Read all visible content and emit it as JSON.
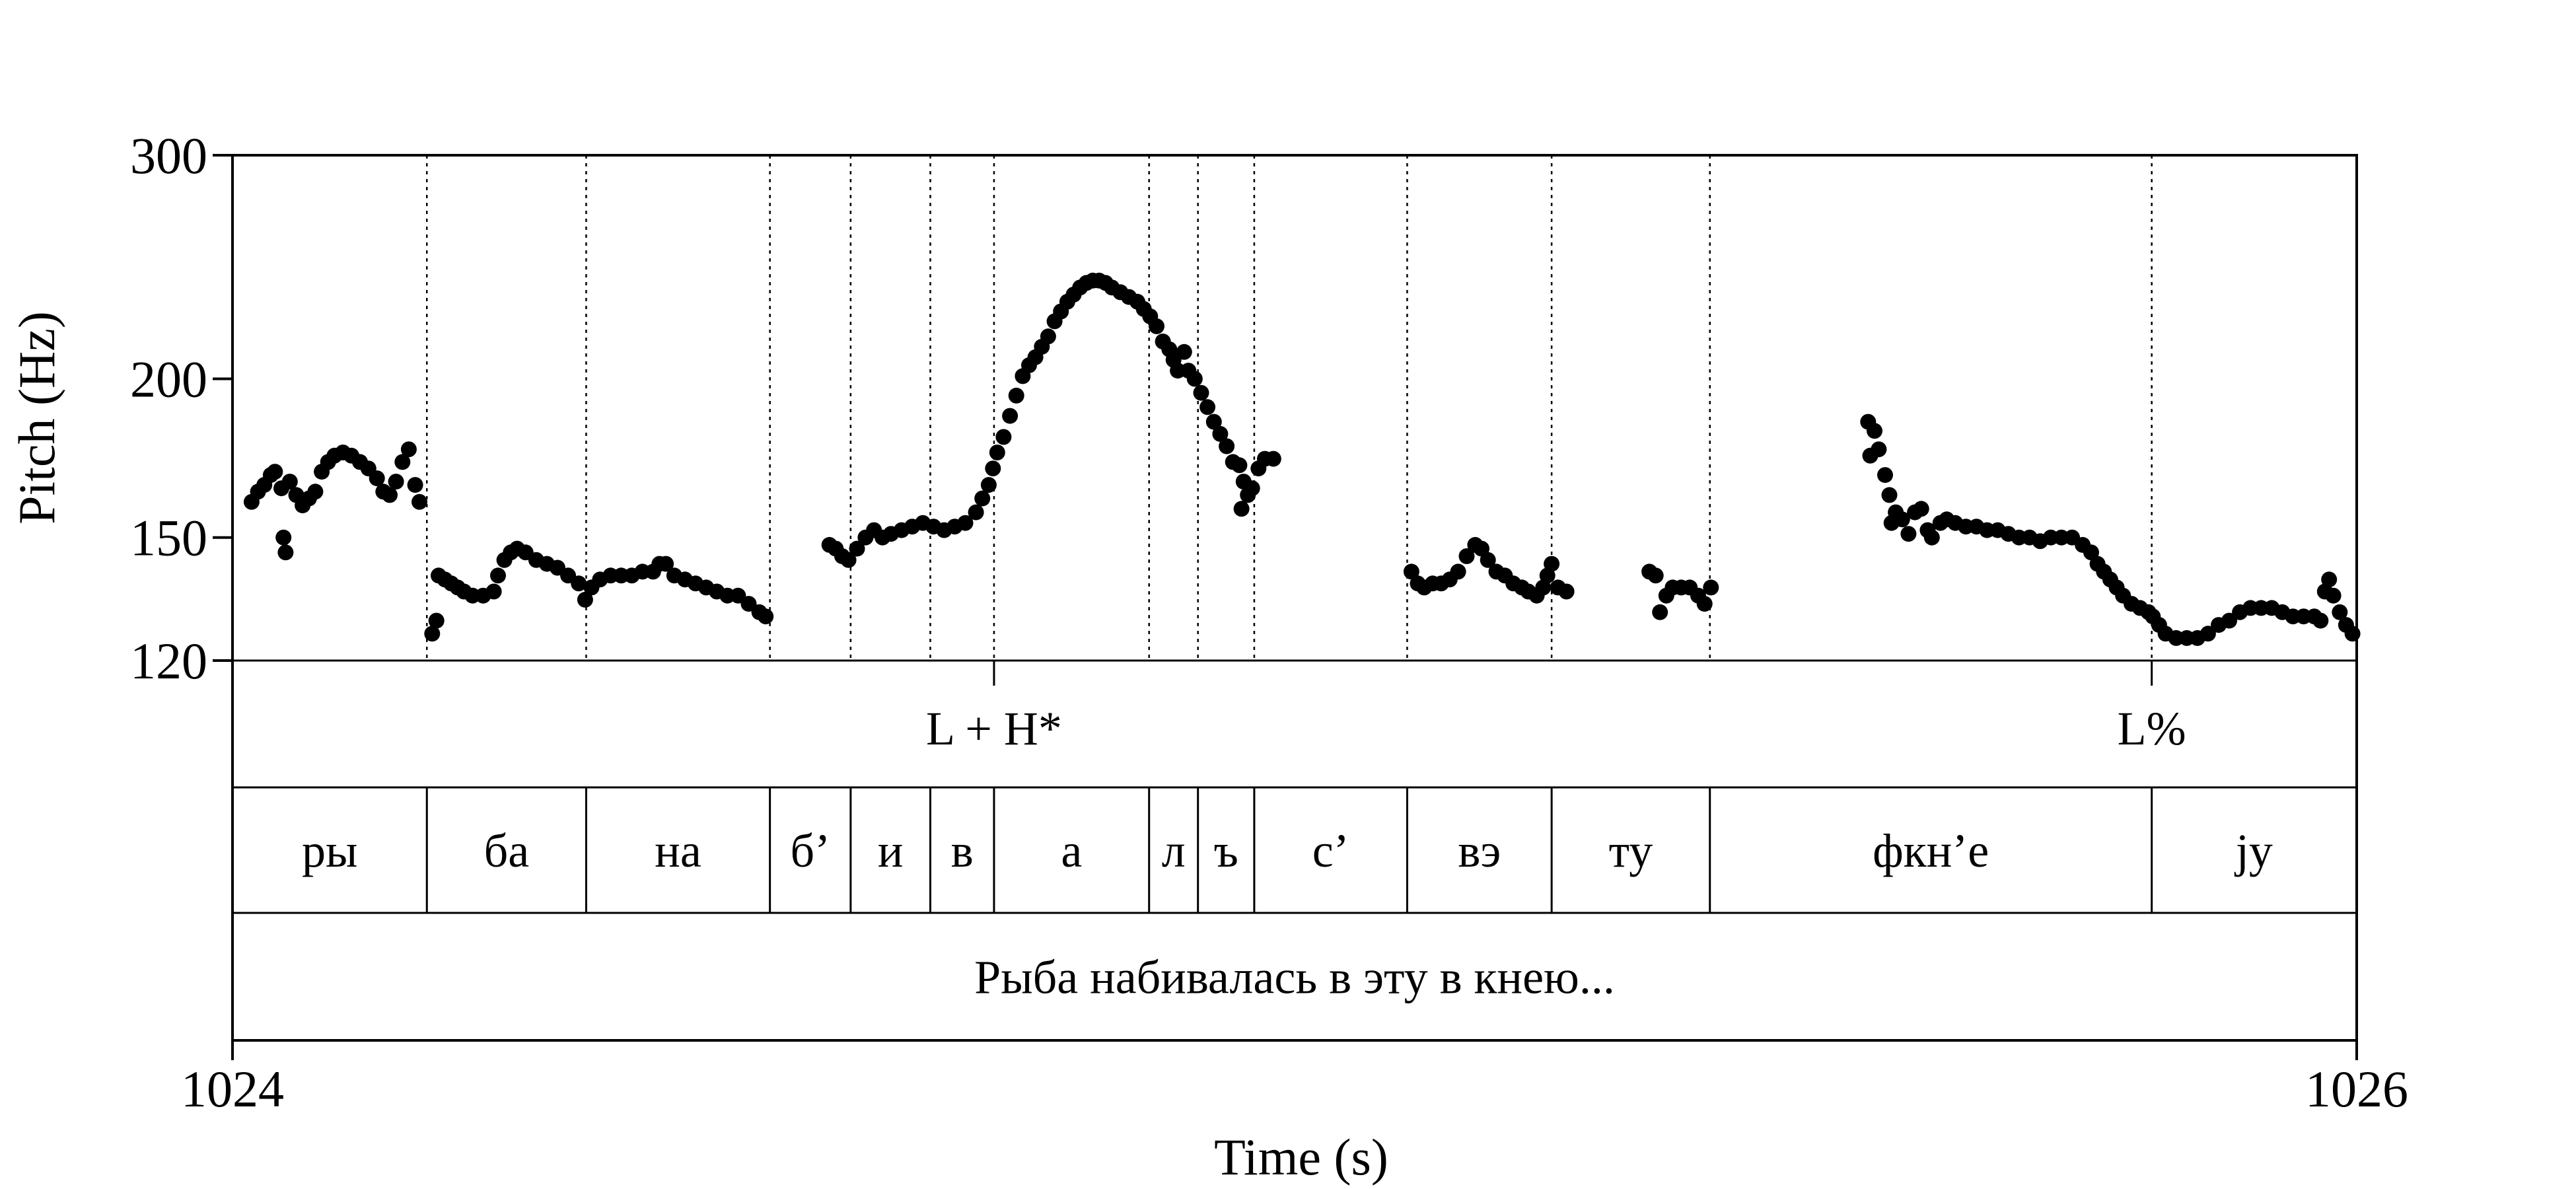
{
  "chart_data": {
    "type": "scatter",
    "title": "",
    "xlabel": "Time (s)",
    "ylabel": "Pitch (Hz)",
    "xlim": [
      1024,
      1026
    ],
    "ylim": [
      120,
      300
    ],
    "y_scale": "log",
    "x_ticks": [
      "1024",
      "1026"
    ],
    "y_ticks": [
      {
        "value": 120,
        "label": "120"
      },
      {
        "value": 150,
        "label": "150"
      },
      {
        "value": 200,
        "label": "200"
      },
      {
        "value": 300,
        "label": "300"
      }
    ],
    "boundaries": [
      1024.183,
      1024.333,
      1024.506,
      1024.582,
      1024.657,
      1024.717,
      1024.863,
      1024.909,
      1024.962,
      1025.106,
      1025.242,
      1025.391,
      1025.807
    ],
    "tones": [
      {
        "time": 1024.717,
        "label": "L + H*"
      },
      {
        "time": 1025.807,
        "label": "L%"
      }
    ],
    "syllables": [
      {
        "start": 1024.0,
        "end": 1024.183,
        "label": "ры"
      },
      {
        "start": 1024.183,
        "end": 1024.333,
        "label": "ба"
      },
      {
        "start": 1024.333,
        "end": 1024.506,
        "label": "на"
      },
      {
        "start": 1024.506,
        "end": 1024.582,
        "label": "б’"
      },
      {
        "start": 1024.582,
        "end": 1024.657,
        "label": "и"
      },
      {
        "start": 1024.657,
        "end": 1024.717,
        "label": "в"
      },
      {
        "start": 1024.717,
        "end": 1024.863,
        "label": "а"
      },
      {
        "start": 1024.863,
        "end": 1024.909,
        "label": "л"
      },
      {
        "start": 1024.909,
        "end": 1024.962,
        "label": "ъ"
      },
      {
        "start": 1024.962,
        "end": 1025.106,
        "label": "с’"
      },
      {
        "start": 1025.106,
        "end": 1025.242,
        "label": "вэ"
      },
      {
        "start": 1025.242,
        "end": 1025.391,
        "label": "ту"
      },
      {
        "start": 1025.391,
        "end": 1025.807,
        "label": "фкн’е"
      },
      {
        "start": 1025.807,
        "end": 1026.0,
        "label": "jу"
      }
    ],
    "sentence": "Рыба набивалась в эту в кнею...",
    "series": [
      {
        "values": [
          [
            1024.018,
            160
          ],
          [
            1024.024,
            163
          ],
          [
            1024.03,
            165
          ],
          [
            1024.036,
            168
          ],
          [
            1024.04,
            169
          ],
          [
            1024.046,
            164
          ],
          [
            1024.054,
            166
          ],
          [
            1024.06,
            162
          ],
          [
            1024.066,
            159
          ],
          [
            1024.072,
            161
          ],
          [
            1024.078,
            163
          ],
          [
            1024.084,
            169
          ],
          [
            1024.09,
            172
          ],
          [
            1024.096,
            174
          ],
          [
            1024.104,
            175
          ],
          [
            1024.112,
            174
          ],
          [
            1024.12,
            172
          ],
          [
            1024.128,
            170
          ],
          [
            1024.136,
            167
          ],
          [
            1024.142,
            163
          ],
          [
            1024.148,
            162
          ],
          [
            1024.154,
            166
          ],
          [
            1024.16,
            172
          ],
          [
            1024.166,
            176
          ],
          [
            1024.172,
            165
          ],
          [
            1024.176,
            160
          ],
          [
            1024.048,
            150
          ],
          [
            1024.05,
            146
          ],
          [
            1024.188,
            126
          ],
          [
            1024.192,
            129
          ],
          [
            1024.194,
            140
          ],
          [
            1024.2,
            139
          ],
          [
            1024.206,
            138
          ],
          [
            1024.212,
            137
          ],
          [
            1024.218,
            136
          ],
          [
            1024.226,
            135
          ],
          [
            1024.236,
            135
          ],
          [
            1024.246,
            136
          ],
          [
            1024.25,
            140
          ],
          [
            1024.256,
            144
          ],
          [
            1024.262,
            146
          ],
          [
            1024.268,
            147
          ],
          [
            1024.276,
            146
          ],
          [
            1024.286,
            144
          ],
          [
            1024.296,
            143
          ],
          [
            1024.306,
            142
          ],
          [
            1024.316,
            140
          ],
          [
            1024.326,
            138
          ],
          [
            1024.332,
            134
          ],
          [
            1024.338,
            137
          ],
          [
            1024.346,
            139
          ],
          [
            1024.356,
            140
          ],
          [
            1024.366,
            140
          ],
          [
            1024.376,
            140
          ],
          [
            1024.386,
            141
          ],
          [
            1024.396,
            141
          ],
          [
            1024.402,
            143
          ],
          [
            1024.408,
            143
          ],
          [
            1024.416,
            140
          ],
          [
            1024.426,
            139
          ],
          [
            1024.436,
            138
          ],
          [
            1024.446,
            137
          ],
          [
            1024.456,
            136
          ],
          [
            1024.466,
            135
          ],
          [
            1024.476,
            135
          ],
          [
            1024.486,
            133
          ],
          [
            1024.496,
            131
          ],
          [
            1024.502,
            130
          ],
          [
            1024.562,
            148
          ],
          [
            1024.568,
            147
          ],
          [
            1024.574,
            145
          ],
          [
            1024.58,
            144
          ],
          [
            1024.588,
            147
          ],
          [
            1024.596,
            150
          ],
          [
            1024.604,
            152
          ],
          [
            1024.612,
            150
          ],
          [
            1024.62,
            151
          ],
          [
            1024.63,
            152
          ],
          [
            1024.64,
            153
          ],
          [
            1024.65,
            154
          ],
          [
            1024.66,
            153
          ],
          [
            1024.67,
            152
          ],
          [
            1024.68,
            153
          ],
          [
            1024.69,
            154
          ],
          [
            1024.7,
            157
          ],
          [
            1024.706,
            161
          ],
          [
            1024.712,
            165
          ],
          [
            1024.716,
            170
          ],
          [
            1024.72,
            175
          ],
          [
            1024.726,
            180
          ],
          [
            1024.732,
            187
          ],
          [
            1024.738,
            194
          ],
          [
            1024.744,
            201
          ],
          [
            1024.75,
            205
          ],
          [
            1024.756,
            208
          ],
          [
            1024.762,
            212
          ],
          [
            1024.768,
            216
          ],
          [
            1024.774,
            222
          ],
          [
            1024.78,
            226
          ],
          [
            1024.786,
            230
          ],
          [
            1024.792,
            233
          ],
          [
            1024.798,
            236
          ],
          [
            1024.804,
            238
          ],
          [
            1024.81,
            239
          ],
          [
            1024.816,
            239
          ],
          [
            1024.822,
            238
          ],
          [
            1024.828,
            236
          ],
          [
            1024.836,
            234
          ],
          [
            1024.844,
            232
          ],
          [
            1024.852,
            230
          ],
          [
            1024.858,
            227
          ],
          [
            1024.864,
            224
          ],
          [
            1024.87,
            220
          ],
          [
            1024.876,
            214
          ],
          [
            1024.882,
            211
          ],
          [
            1024.886,
            207
          ],
          [
            1024.89,
            203
          ],
          [
            1024.896,
            210
          ],
          [
            1024.9,
            203
          ],
          [
            1024.906,
            200
          ],
          [
            1024.912,
            195
          ],
          [
            1024.918,
            190
          ],
          [
            1024.924,
            185
          ],
          [
            1024.93,
            181
          ],
          [
            1024.936,
            177
          ],
          [
            1024.942,
            172
          ],
          [
            1024.948,
            171
          ],
          [
            1024.952,
            166
          ],
          [
            1024.956,
            162
          ],
          [
            1024.96,
            164
          ],
          [
            1024.966,
            170
          ],
          [
            1024.972,
            173
          ],
          [
            1024.98,
            173
          ],
          [
            1024.95,
            158
          ],
          [
            1025.11,
            141
          ],
          [
            1025.116,
            138
          ],
          [
            1025.122,
            137
          ],
          [
            1025.13,
            138
          ],
          [
            1025.138,
            138
          ],
          [
            1025.146,
            139
          ],
          [
            1025.154,
            141
          ],
          [
            1025.162,
            145
          ],
          [
            1025.17,
            148
          ],
          [
            1025.176,
            147
          ],
          [
            1025.182,
            144
          ],
          [
            1025.19,
            141
          ],
          [
            1025.198,
            140
          ],
          [
            1025.206,
            138
          ],
          [
            1025.214,
            137
          ],
          [
            1025.22,
            136
          ],
          [
            1025.228,
            135
          ],
          [
            1025.234,
            137
          ],
          [
            1025.238,
            140
          ],
          [
            1025.242,
            143
          ],
          [
            1025.248,
            137
          ],
          [
            1025.256,
            136
          ],
          [
            1025.334,
            141
          ],
          [
            1025.34,
            140
          ],
          [
            1025.344,
            131
          ],
          [
            1025.35,
            135
          ],
          [
            1025.356,
            137
          ],
          [
            1025.364,
            137
          ],
          [
            1025.372,
            137
          ],
          [
            1025.38,
            135
          ],
          [
            1025.386,
            133
          ],
          [
            1025.392,
            137
          ],
          [
            1025.54,
            185
          ],
          [
            1025.546,
            182
          ],
          [
            1025.55,
            176
          ],
          [
            1025.542,
            174
          ],
          [
            1025.556,
            168
          ],
          [
            1025.56,
            162
          ],
          [
            1025.562,
            154
          ],
          [
            1025.566,
            157
          ],
          [
            1025.572,
            155
          ],
          [
            1025.578,
            151
          ],
          [
            1025.584,
            157
          ],
          [
            1025.59,
            158
          ],
          [
            1025.596,
            152
          ],
          [
            1025.6,
            150
          ],
          [
            1025.608,
            154
          ],
          [
            1025.614,
            155
          ],
          [
            1025.622,
            154
          ],
          [
            1025.632,
            153
          ],
          [
            1025.642,
            153
          ],
          [
            1025.652,
            152
          ],
          [
            1025.662,
            152
          ],
          [
            1025.672,
            151
          ],
          [
            1025.682,
            150
          ],
          [
            1025.692,
            150
          ],
          [
            1025.702,
            149
          ],
          [
            1025.712,
            150
          ],
          [
            1025.722,
            150
          ],
          [
            1025.732,
            150
          ],
          [
            1025.742,
            148
          ],
          [
            1025.75,
            146
          ],
          [
            1025.756,
            143
          ],
          [
            1025.762,
            141
          ],
          [
            1025.768,
            139
          ],
          [
            1025.774,
            137
          ],
          [
            1025.78,
            135
          ],
          [
            1025.788,
            133
          ],
          [
            1025.796,
            132
          ],
          [
            1025.804,
            131
          ],
          [
            1025.808,
            130
          ],
          [
            1025.814,
            128
          ],
          [
            1025.82,
            126
          ],
          [
            1025.83,
            125
          ],
          [
            1025.84,
            125
          ],
          [
            1025.85,
            125
          ],
          [
            1025.86,
            126
          ],
          [
            1025.87,
            128
          ],
          [
            1025.88,
            129
          ],
          [
            1025.89,
            131
          ],
          [
            1025.9,
            132
          ],
          [
            1025.91,
            132
          ],
          [
            1025.92,
            132
          ],
          [
            1025.93,
            131
          ],
          [
            1025.94,
            130
          ],
          [
            1025.95,
            130
          ],
          [
            1025.96,
            130
          ],
          [
            1025.966,
            129
          ],
          [
            1025.97,
            136
          ],
          [
            1025.974,
            139
          ],
          [
            1025.978,
            135
          ],
          [
            1025.984,
            131
          ],
          [
            1025.99,
            128
          ],
          [
            1025.996,
            126
          ]
        ]
      }
    ]
  }
}
